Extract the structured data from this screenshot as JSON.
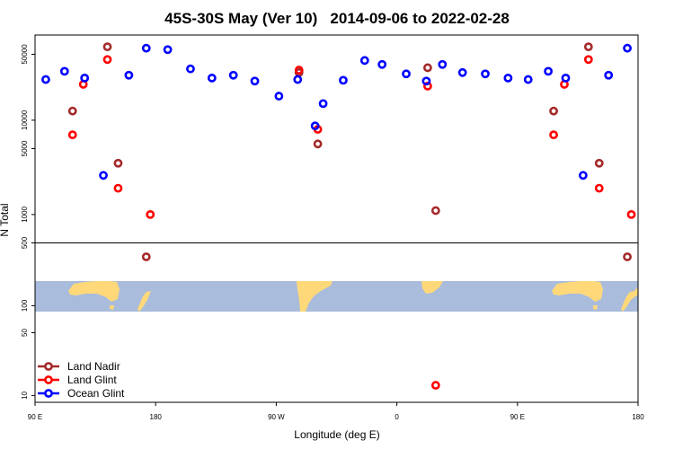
{
  "chart_data": {
    "type": "scatter",
    "title": "45S-30S May (Ver 10)   2014-09-06 to 2022-02-28",
    "xlabel": "Longitude (deg E)",
    "ylabel": "N Total",
    "y_scale": "log",
    "xlim_description": "90 E through 180, 90 W, 0, 90 E to 180 (wraps 450 degrees)",
    "x_range_unwrapped": [
      90,
      540
    ],
    "upper_panel_ylim": [
      500,
      80000
    ],
    "lower_panel_ylim": [
      9,
      500
    ],
    "x_ticks": [
      {
        "x": 90,
        "label": "90 E"
      },
      {
        "x": 180,
        "label": "180"
      },
      {
        "x": 270,
        "label": "90 W"
      },
      {
        "x": 360,
        "label": "0"
      },
      {
        "x": 450,
        "label": "90 E"
      },
      {
        "x": 540,
        "label": "180"
      }
    ],
    "upper_y_ticks": [
      {
        "v": 500,
        "label": "500"
      },
      {
        "v": 1000,
        "label": "1000"
      },
      {
        "v": 5000,
        "label": "5000"
      },
      {
        "v": 10000,
        "label": "10000"
      },
      {
        "v": 50000,
        "label": "50000"
      }
    ],
    "lower_y_ticks": [
      {
        "v": 10,
        "label": "10"
      },
      {
        "v": 50,
        "label": "50"
      },
      {
        "v": 100,
        "label": "100"
      }
    ],
    "legend_position": "bottom-left",
    "series": [
      {
        "name": "Land Nadir",
        "color": "#a52a2a",
        "points": [
          {
            "lon": 118,
            "n": 12500
          },
          {
            "lon": 144,
            "n": 60000
          },
          {
            "lon": 152,
            "n": 3500
          },
          {
            "lon": 173,
            "n": 350
          },
          {
            "lon": 287,
            "n": 32000
          },
          {
            "lon": 301,
            "n": 5600
          },
          {
            "lon": 383,
            "n": 36000
          },
          {
            "lon": 389,
            "n": 1100
          },
          {
            "lon": 477,
            "n": 12500
          },
          {
            "lon": 503,
            "n": 60000
          },
          {
            "lon": 511,
            "n": 3500
          },
          {
            "lon": 532,
            "n": 350
          }
        ]
      },
      {
        "name": "Land Glint",
        "color": "#ff0000",
        "points": [
          {
            "lon": 118,
            "n": 7000
          },
          {
            "lon": 126,
            "n": 24000
          },
          {
            "lon": 144,
            "n": 44000
          },
          {
            "lon": 152,
            "n": 1900
          },
          {
            "lon": 176,
            "n": 1000
          },
          {
            "lon": 287,
            "n": 34000
          },
          {
            "lon": 301,
            "n": 8000
          },
          {
            "lon": 383,
            "n": 23000
          },
          {
            "lon": 389,
            "n": 13
          },
          {
            "lon": 477,
            "n": 7000
          },
          {
            "lon": 485,
            "n": 24000
          },
          {
            "lon": 503,
            "n": 44000
          },
          {
            "lon": 511,
            "n": 1900
          },
          {
            "lon": 535,
            "n": 1000
          }
        ]
      },
      {
        "name": "Ocean Glint",
        "color": "#0000ff",
        "points": [
          {
            "lon": 98,
            "n": 27000
          },
          {
            "lon": 112,
            "n": 33000
          },
          {
            "lon": 127,
            "n": 28000
          },
          {
            "lon": 141,
            "n": 2600
          },
          {
            "lon": 160,
            "n": 30000
          },
          {
            "lon": 173,
            "n": 58000
          },
          {
            "lon": 189,
            "n": 56000
          },
          {
            "lon": 206,
            "n": 35000
          },
          {
            "lon": 222,
            "n": 28000
          },
          {
            "lon": 238,
            "n": 30000
          },
          {
            "lon": 254,
            "n": 26000
          },
          {
            "lon": 272,
            "n": 18000
          },
          {
            "lon": 286,
            "n": 27000
          },
          {
            "lon": 299,
            "n": 8700
          },
          {
            "lon": 305,
            "n": 15000
          },
          {
            "lon": 320,
            "n": 26500
          },
          {
            "lon": 336,
            "n": 43000
          },
          {
            "lon": 349,
            "n": 39000
          },
          {
            "lon": 367,
            "n": 31000
          },
          {
            "lon": 382,
            "n": 26000
          },
          {
            "lon": 394,
            "n": 39000
          },
          {
            "lon": 409,
            "n": 32000
          },
          {
            "lon": 426,
            "n": 31000
          },
          {
            "lon": 443,
            "n": 28000
          },
          {
            "lon": 458,
            "n": 27000
          },
          {
            "lon": 473,
            "n": 33000
          },
          {
            "lon": 486,
            "n": 28000
          },
          {
            "lon": 499,
            "n": 2600
          },
          {
            "lon": 518,
            "n": 30000
          },
          {
            "lon": 532,
            "n": 58000
          }
        ]
      }
    ]
  }
}
